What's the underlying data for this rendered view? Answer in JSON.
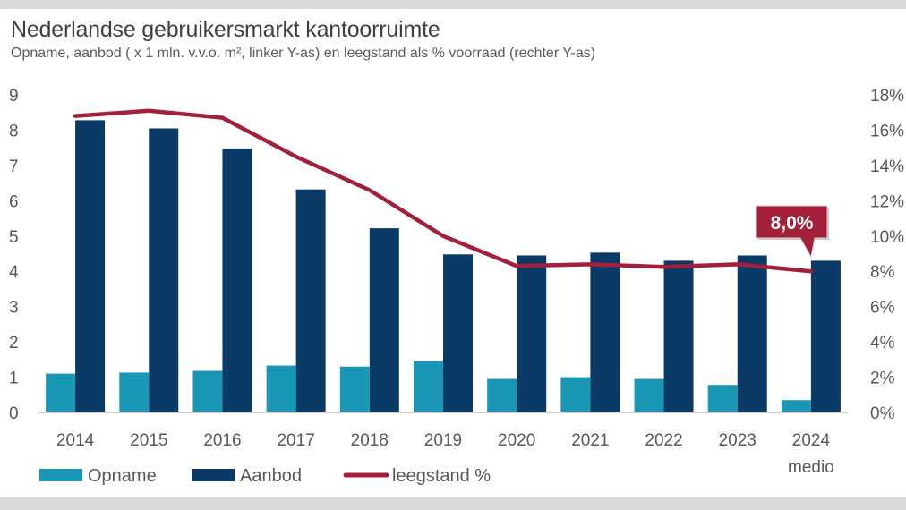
{
  "chart_data": {
    "type": "bar",
    "title": "Nederlandse gebruikersmarkt kantoorruimte",
    "subtitle": "Opname, aanbod ( x 1 mln. v.v.o. m², linker Y-as) en leegstand als % voorraad (rechter Y-as)",
    "categories": [
      "2014",
      "2015",
      "2016",
      "2017",
      "2018",
      "2019",
      "2020",
      "2021",
      "2022",
      "2023",
      "2024 medio"
    ],
    "category_lines": [
      [
        "2014"
      ],
      [
        "2015"
      ],
      [
        "2016"
      ],
      [
        "2017"
      ],
      [
        "2018"
      ],
      [
        "2019"
      ],
      [
        "2020"
      ],
      [
        "2021"
      ],
      [
        "2022"
      ],
      [
        "2023"
      ],
      [
        "2024",
        "medio"
      ]
    ],
    "series": [
      {
        "name": "Opname",
        "type": "bar",
        "axis": "left",
        "color": "#1b97b6",
        "values": [
          1.1,
          1.13,
          1.18,
          1.33,
          1.3,
          1.45,
          0.95,
          1.0,
          0.95,
          0.78,
          0.35
        ]
      },
      {
        "name": "Aanbod",
        "type": "bar",
        "axis": "left",
        "color": "#0a3a66",
        "values": [
          8.28,
          8.05,
          7.48,
          6.32,
          5.22,
          4.48,
          4.45,
          4.53,
          4.3,
          4.45,
          4.3
        ]
      },
      {
        "name": "leegstand %",
        "type": "line",
        "axis": "right",
        "color": "#a3203a",
        "values": [
          16.8,
          17.1,
          16.7,
          14.5,
          12.6,
          10.0,
          8.3,
          8.4,
          8.25,
          8.4,
          8.0
        ]
      }
    ],
    "ylim_left": [
      0,
      9
    ],
    "yticks_left": [
      "0",
      "1",
      "2",
      "3",
      "4",
      "5",
      "6",
      "7",
      "8",
      "9"
    ],
    "ylim_right": [
      0,
      18
    ],
    "yticks_right": [
      "0%",
      "2%",
      "4%",
      "6%",
      "8%",
      "10%",
      "12%",
      "14%",
      "16%",
      "18%"
    ],
    "grid": false,
    "legend_position": "bottom-left",
    "annotation": {
      "text": "8,0%",
      "category": "2024 medio",
      "series": "leegstand %"
    }
  }
}
